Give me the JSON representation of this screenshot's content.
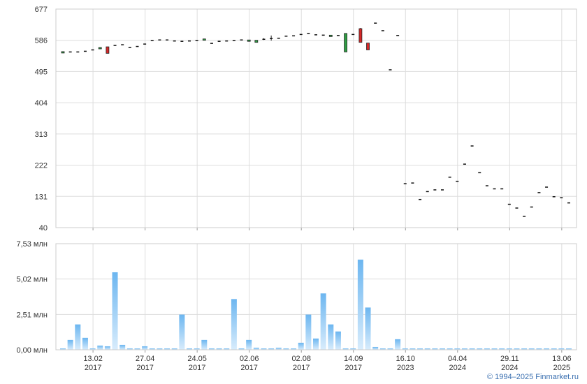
{
  "credit": "© 1994–2025 Finmarket.ru",
  "chart_data": {
    "type": "candlestick+bar",
    "colors": {
      "up": "#2f9e44",
      "down": "#d62828",
      "flat": "#111111",
      "volume_top": "#6cb6f0",
      "volume_bottom": "#d8ecfc",
      "grid": "#dddddd"
    },
    "price_axis": {
      "ticks": [
        "677",
        "586",
        "495",
        "404",
        "313",
        "222",
        "131",
        "40"
      ],
      "ylim": [
        40,
        677
      ]
    },
    "volume_axis": {
      "ticks": [
        "7,53 млн",
        "5,02 млн",
        "2,51 млн",
        "0,00 млн"
      ],
      "ylim": [
        0,
        7.53
      ]
    },
    "x_ticks": [
      {
        "index": 4,
        "day": "13.02",
        "year": "2017"
      },
      {
        "index": 11,
        "day": "27.04",
        "year": "2017"
      },
      {
        "index": 18,
        "day": "24.05",
        "year": "2017"
      },
      {
        "index": 25,
        "day": "02.06",
        "year": "2017"
      },
      {
        "index": 32,
        "day": "02.08",
        "year": "2017"
      },
      {
        "index": 39,
        "day": "14.09",
        "year": "2017"
      },
      {
        "index": 46,
        "day": "16.10",
        "year": "2023"
      },
      {
        "index": 53,
        "day": "04.04",
        "year": "2024"
      },
      {
        "index": 60,
        "day": "29.11",
        "year": "2024"
      },
      {
        "index": 67,
        "day": "13.06",
        "year": "2025"
      }
    ],
    "bars": [
      {
        "o": 550,
        "c": 553,
        "v": 0.05
      },
      {
        "o": 552,
        "c": 552,
        "v": 0.7
      },
      {
        "o": 552,
        "c": 552,
        "v": 1.8
      },
      {
        "o": 554,
        "c": 554,
        "v": 0.85
      },
      {
        "o": 558,
        "c": 558,
        "v": 0.05
      },
      {
        "o": 561,
        "c": 565,
        "v": 0.3
      },
      {
        "o": 567,
        "c": 548,
        "v": 0.25
      },
      {
        "o": 571,
        "c": 571,
        "v": 5.5
      },
      {
        "o": 573,
        "c": 573,
        "v": 0.35
      },
      {
        "o": 565,
        "c": 565,
        "v": 0.1
      },
      {
        "o": 568,
        "c": 568,
        "v": 0.05
      },
      {
        "o": 575,
        "c": 575,
        "v": 0.25
      },
      {
        "o": 585,
        "c": 585,
        "v": 0.05
      },
      {
        "o": 587,
        "c": 587,
        "v": 0.05
      },
      {
        "o": 587,
        "c": 587,
        "v": 0.02
      },
      {
        "o": 584,
        "c": 584,
        "v": 0.02
      },
      {
        "o": 583,
        "c": 583,
        "v": 2.5
      },
      {
        "o": 584,
        "c": 584,
        "v": 0.05
      },
      {
        "o": 585,
        "c": 585,
        "v": 0.05
      },
      {
        "o": 587,
        "c": 590,
        "v": 0.7
      },
      {
        "o": 577,
        "c": 577,
        "v": 0.1
      },
      {
        "o": 583,
        "c": 583,
        "v": 0.1
      },
      {
        "o": 584,
        "c": 584,
        "v": 0.05
      },
      {
        "o": 585,
        "c": 585,
        "v": 3.6
      },
      {
        "o": 587,
        "c": 587,
        "v": 0.05
      },
      {
        "o": 583,
        "c": 587,
        "v": 0.7
      },
      {
        "o": 580,
        "c": 586,
        "v": 0.15
      },
      {
        "o": 589,
        "c": 589,
        "h": 592,
        "l": 587,
        "v": 0.05
      },
      {
        "o": 591,
        "c": 591,
        "h": 600,
        "l": 585,
        "v": 0.05
      },
      {
        "o": 592,
        "c": 592,
        "v": 0.15
      },
      {
        "o": 598,
        "c": 598,
        "v": 0.1
      },
      {
        "o": 599,
        "c": 599,
        "v": 0.05
      },
      {
        "o": 603,
        "c": 603,
        "v": 0.5
      },
      {
        "o": 606,
        "c": 606,
        "v": 2.5
      },
      {
        "o": 602,
        "c": 602,
        "v": 0.8
      },
      {
        "o": 601,
        "c": 601,
        "v": 4.0
      },
      {
        "o": 597,
        "c": 601,
        "v": 1.8
      },
      {
        "o": 600,
        "c": 600,
        "v": 1.3
      },
      {
        "o": 552,
        "c": 606,
        "v": 0.05
      },
      {
        "o": 603,
        "c": 603,
        "v": 0.05
      },
      {
        "o": 620,
        "c": 580,
        "h": 622,
        "l": 580,
        "v": 6.4
      },
      {
        "o": 578,
        "c": 558,
        "v": 3.0
      },
      {
        "o": 636,
        "c": 636,
        "v": 0.2
      },
      {
        "o": 614,
        "c": 614,
        "v": 0.05
      },
      {
        "o": 500,
        "c": 500,
        "v": 0.05
      },
      {
        "o": 600,
        "c": 600,
        "v": 0.75
      },
      {
        "o": 168,
        "c": 168,
        "v": 0.05
      },
      {
        "o": 170,
        "c": 170,
        "v": 0.05
      },
      {
        "o": 122,
        "c": 122,
        "v": 0.05
      },
      {
        "o": 145,
        "c": 145,
        "v": 0.05
      },
      {
        "o": 150,
        "c": 150,
        "v": 0.05
      },
      {
        "o": 150,
        "c": 150,
        "v": 0.05
      },
      {
        "o": 187,
        "c": 187,
        "v": 0.05
      },
      {
        "o": 175,
        "c": 175,
        "v": 0.05
      },
      {
        "o": 225,
        "c": 225,
        "v": 0.05
      },
      {
        "o": 278,
        "c": 278,
        "v": 0.05
      },
      {
        "o": 200,
        "c": 200,
        "v": 0.05
      },
      {
        "o": 162,
        "c": 162,
        "v": 0.05
      },
      {
        "o": 153,
        "c": 153,
        "v": 0.05
      },
      {
        "o": 153,
        "c": 153,
        "v": 0.05
      },
      {
        "o": 108,
        "c": 108,
        "v": 0.05
      },
      {
        "o": 97,
        "c": 97,
        "v": 0.05
      },
      {
        "o": 73,
        "c": 73,
        "v": 0.05
      },
      {
        "o": 100,
        "c": 100,
        "v": 0.05
      },
      {
        "o": 142,
        "c": 142,
        "v": 0.05
      },
      {
        "o": 158,
        "c": 158,
        "v": 0.1
      },
      {
        "o": 130,
        "c": 130,
        "v": 0.05
      },
      {
        "o": 127,
        "c": 127,
        "v": 0.05
      },
      {
        "o": 112,
        "c": 112,
        "v": 0.05
      }
    ]
  }
}
